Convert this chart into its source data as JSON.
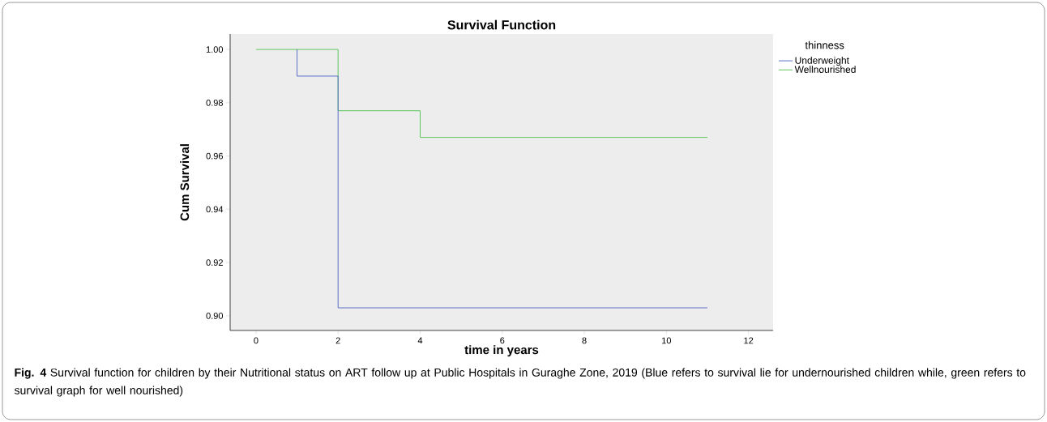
{
  "chart_data": {
    "type": "step",
    "title": "Survival Function",
    "xlabel": "time in years",
    "ylabel": "Cum Survival",
    "legend_title": "thinness",
    "series": [
      {
        "name": "Underweight",
        "color": "#5a6ec8",
        "x": [
          1,
          1,
          2,
          11
        ],
        "values": [
          1.0,
          0.99,
          0.903,
          0.903
        ]
      },
      {
        "name": "Wellnourished",
        "color": "#5cc65c",
        "x": [
          0,
          2,
          4,
          11
        ],
        "values": [
          1.0,
          0.977,
          0.967,
          0.967
        ]
      }
    ],
    "xlim": [
      -0.63,
      12.6
    ],
    "ylim": [
      0.8945,
      1.0058
    ],
    "xticks": [
      0,
      2,
      4,
      6,
      8,
      10,
      12
    ],
    "yticks": [
      {
        "value": 0.9,
        "label": "0.90"
      },
      {
        "value": 0.92,
        "label": "0.92"
      },
      {
        "value": 0.94,
        "label": "0.94"
      },
      {
        "value": 0.96,
        "label": "0.96"
      },
      {
        "value": 0.98,
        "label": "0.98"
      },
      {
        "value": 1.0,
        "label": "1.00"
      }
    ],
    "grid": false,
    "legend": "top right",
    "marker": "none",
    "line_style": "solid",
    "annotations": [
      "**Fig. 4** Survival function for children by their Nutritional status on ART follow up at Public Hospitals in Guraghe Zone, 2019 (Blue refers to survival lie for undernourished children while, green refers to survival graph for well nourished)"
    ]
  }
}
